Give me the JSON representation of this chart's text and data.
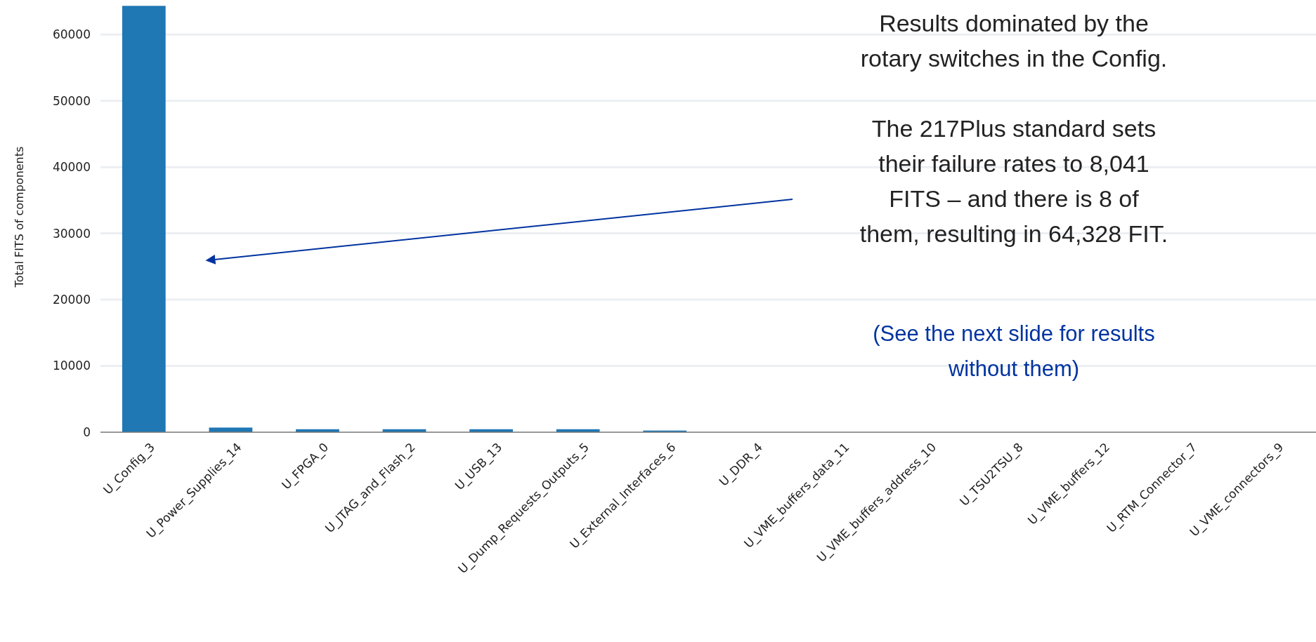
{
  "chart_data": {
    "type": "bar",
    "ylabel": "Total FITS of components",
    "categories": [
      "U_Config_3",
      "U_Power_Supplies_14",
      "U_FPGA_0",
      "U_JTAG_and_Flash_2",
      "U_USB_13",
      "U_Dump_Requests_Outputs_5",
      "U_External_Interfaces_6",
      "U_DDR_4",
      "U_VME_buffers_data_11",
      "U_VME_buffers_address_10",
      "U_TSU2TSU_8",
      "U_VME_buffers_12",
      "U_RTM_Connector_7",
      "U_VME_connectors_9"
    ],
    "values": [
      64328,
      700,
      450,
      450,
      450,
      450,
      250,
      0,
      0,
      0,
      0,
      0,
      0,
      0
    ],
    "color": "#1f77b4",
    "ylim": [
      0,
      65000
    ],
    "yticks": [
      0,
      10000,
      20000,
      30000,
      40000,
      50000,
      60000
    ],
    "grid": "y",
    "annotations": [
      "Results dominated by the\nrotary switches in the Config.",
      "The 217Plus standard sets\ntheir failure rates to 8,041\nFITS – and there is 8 of\nthem, resulting in 64,328 FIT.",
      "(See the next slide for results\nwithout them)"
    ]
  }
}
